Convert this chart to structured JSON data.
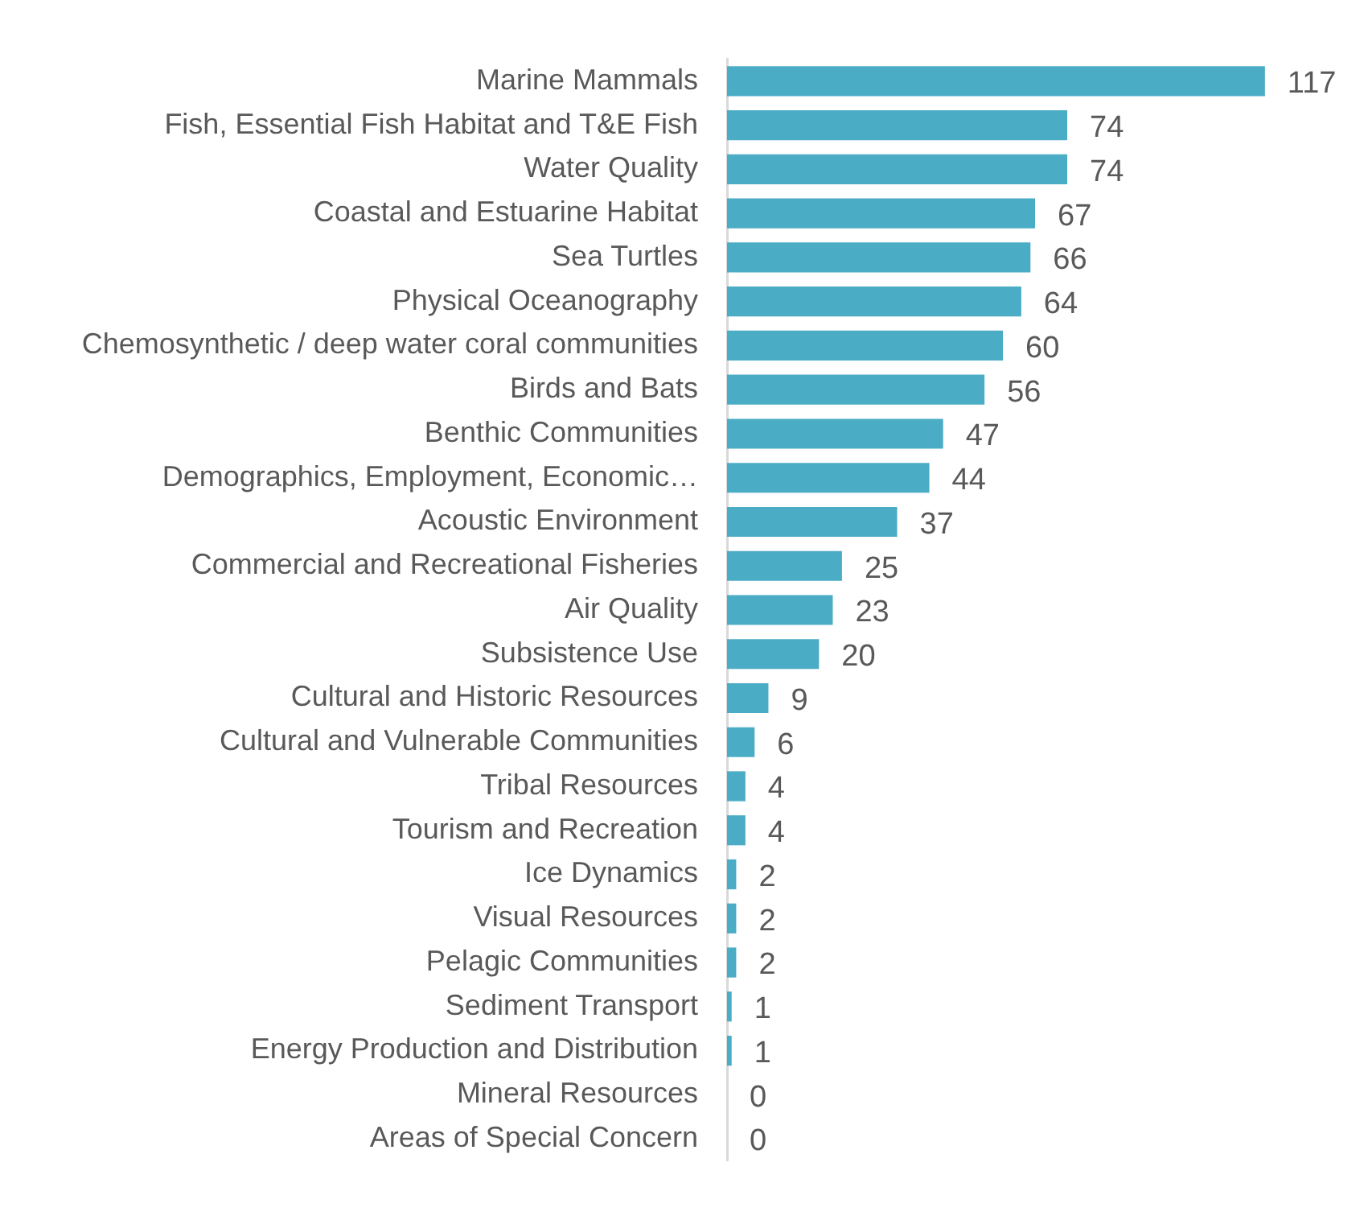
{
  "chart_data": {
    "type": "bar",
    "orientation": "horizontal",
    "categories": [
      "Marine Mammals",
      "Fish, Essential Fish Habitat and T&E Fish",
      "Water Quality",
      "Coastal and Estuarine Habitat",
      "Sea Turtles",
      "Physical Oceanography",
      "Chemosynthetic / deep water coral communities",
      "Birds and Bats",
      "Benthic Communities",
      "Demographics, Employment, Economic…",
      "Acoustic Environment",
      "Commercial and Recreational Fisheries",
      "Air Quality",
      "Subsistence Use",
      "Cultural and Historic Resources",
      "Cultural and Vulnerable Communities",
      "Tribal Resources",
      "Tourism and Recreation",
      "Ice Dynamics",
      "Visual Resources",
      "Pelagic Communities",
      "Sediment Transport",
      "Energy Production and Distribution",
      "Mineral Resources",
      "Areas of Special Concern"
    ],
    "values": [
      117,
      74,
      74,
      67,
      66,
      64,
      60,
      56,
      47,
      44,
      37,
      25,
      23,
      20,
      9,
      6,
      4,
      4,
      2,
      2,
      2,
      1,
      1,
      0,
      0
    ],
    "color": "#4bacc6",
    "data_labels": true,
    "grid": false,
    "legend": false,
    "tick_labels": "y"
  }
}
